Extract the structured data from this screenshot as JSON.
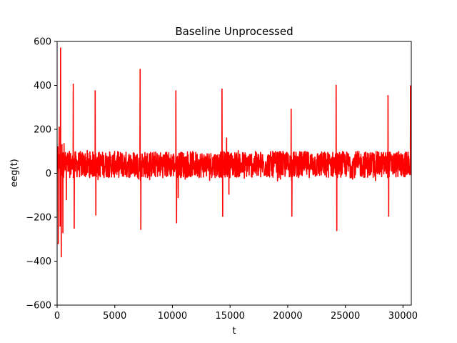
{
  "chart_data": {
    "type": "line",
    "title": "Baseline Unprocessed",
    "xlabel": "t",
    "ylabel": "eeg(t)",
    "xlim": [
      0,
      30720
    ],
    "ylim": [
      -600,
      600
    ],
    "xticks": [
      0,
      5000,
      10000,
      15000,
      20000,
      25000,
      30000
    ],
    "xtick_labels": [
      "0",
      "5000",
      "10000",
      "15000",
      "20000",
      "25000",
      "30000"
    ],
    "yticks": [
      -600,
      -400,
      -200,
      0,
      200,
      400,
      600
    ],
    "ytick_labels": [
      "−600",
      "−400",
      "−200",
      "0",
      "200",
      "400",
      "600"
    ],
    "grid": false,
    "series": [
      {
        "color": "#ff0000",
        "noise_band": {
          "low": -20,
          "high": 100,
          "center": 35
        },
        "spikes": [
          {
            "t": 50,
            "y": 120
          },
          {
            "t": 100,
            "y": -320
          },
          {
            "t": 180,
            "y": 210
          },
          {
            "t": 260,
            "y": -240
          },
          {
            "t": 300,
            "y": 570
          },
          {
            "t": 360,
            "y": -380
          },
          {
            "t": 420,
            "y": 130
          },
          {
            "t": 500,
            "y": -270
          },
          {
            "t": 600,
            "y": 135
          },
          {
            "t": 800,
            "y": -120
          },
          {
            "t": 1400,
            "y": 405
          },
          {
            "t": 1480,
            "y": -250
          },
          {
            "t": 3300,
            "y": 375
          },
          {
            "t": 3360,
            "y": -190
          },
          {
            "t": 7200,
            "y": 473
          },
          {
            "t": 7260,
            "y": -255
          },
          {
            "t": 10300,
            "y": 375
          },
          {
            "t": 10360,
            "y": -225
          },
          {
            "t": 10500,
            "y": -110
          },
          {
            "t": 14300,
            "y": 383
          },
          {
            "t": 14360,
            "y": -195
          },
          {
            "t": 14700,
            "y": 160
          },
          {
            "t": 14900,
            "y": -95
          },
          {
            "t": 20300,
            "y": 292
          },
          {
            "t": 20360,
            "y": -195
          },
          {
            "t": 24200,
            "y": 400
          },
          {
            "t": 24260,
            "y": -260
          },
          {
            "t": 28700,
            "y": 353
          },
          {
            "t": 28760,
            "y": -195
          },
          {
            "t": 30650,
            "y": 398
          }
        ]
      }
    ]
  }
}
